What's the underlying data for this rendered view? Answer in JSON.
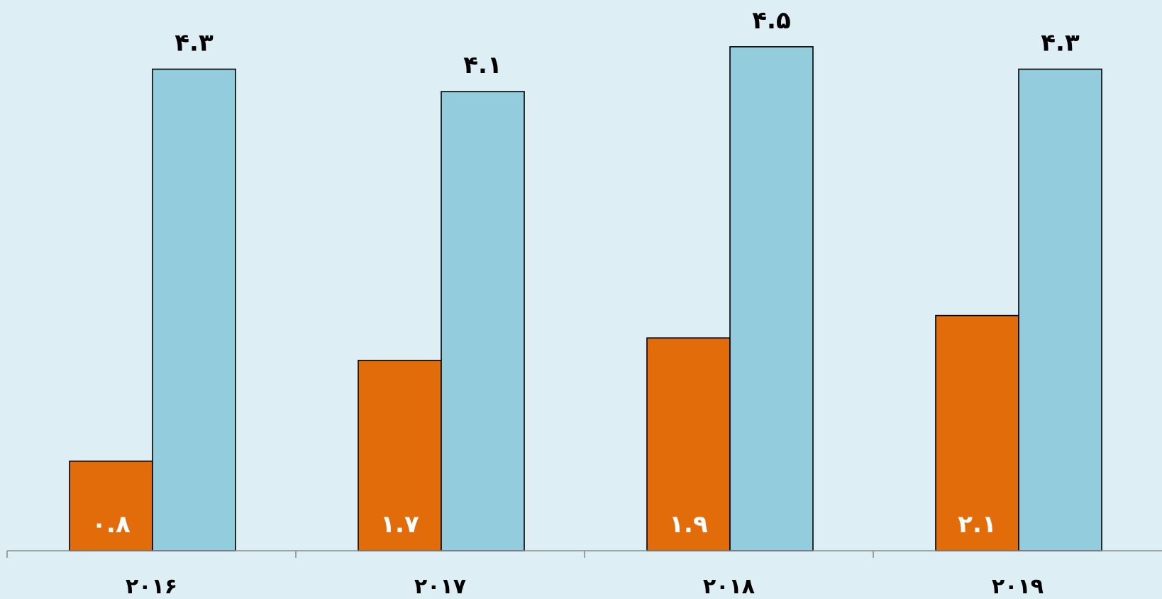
{
  "chart_data": {
    "type": "bar",
    "categories": [
      "۲۰۱۶",
      "۲۰۱۷",
      "۲۰۱۸",
      "۲۰۱۹"
    ],
    "series": [
      {
        "values": [
          0.8,
          1.7,
          1.9,
          2.1
        ],
        "labels": [
          "۰.۸",
          "۱.۷",
          "۱.۹",
          "۲.۱"
        ],
        "color": "#e36c0a",
        "label_position": "inside-bottom",
        "label_color": "#ffffff"
      },
      {
        "values": [
          4.3,
          4.1,
          4.5,
          4.3
        ],
        "labels": [
          "۴.۳",
          "۴.۱",
          "۴.۵",
          "۴.۳"
        ],
        "color": "#93cddd",
        "label_position": "above",
        "label_color": "#000000"
      }
    ],
    "ylim": [
      0,
      4.5
    ],
    "grid": false,
    "legend": "none",
    "title": "",
    "xlabel": "",
    "ylabel": "",
    "background": "#ddeef4",
    "axis_color": "#8c8c8c",
    "bar_stroke": "#000000"
  }
}
